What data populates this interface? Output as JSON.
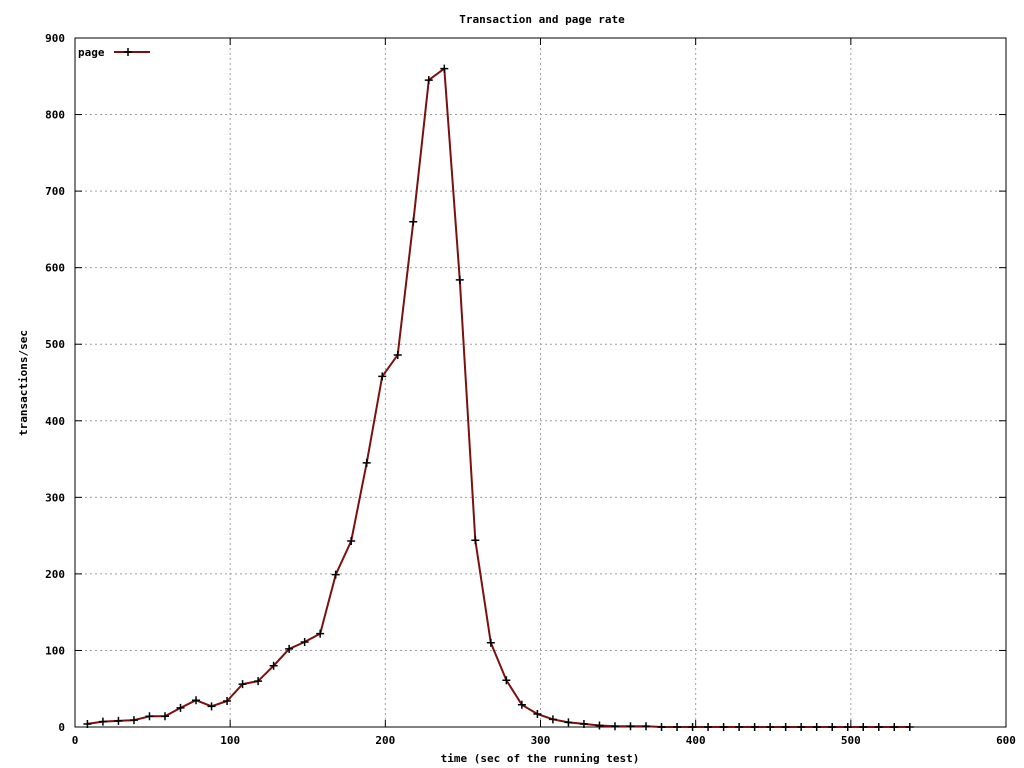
{
  "chart_data": {
    "type": "line",
    "title": "Transaction and page rate",
    "xlabel": "time (sec of the running test)",
    "ylabel": "transactions/sec",
    "xlim": [
      0,
      600
    ],
    "ylim": [
      0,
      900
    ],
    "x_ticks": [
      0,
      100,
      200,
      300,
      400,
      500,
      600
    ],
    "y_ticks": [
      0,
      100,
      200,
      300,
      400,
      500,
      600,
      700,
      800,
      900
    ],
    "grid": true,
    "legend_position": "top-left",
    "series": [
      {
        "name": "page",
        "color": "#7a1010",
        "marker": "plus",
        "x": [
          8,
          18,
          28,
          38,
          48,
          58,
          68,
          78,
          88,
          98,
          108,
          118,
          128,
          138,
          148,
          158,
          168,
          178,
          188,
          198,
          208,
          218,
          228,
          238,
          248,
          258,
          268,
          278,
          288,
          298,
          308,
          318,
          328,
          338,
          348,
          358,
          368,
          378,
          388,
          398,
          408,
          418,
          428,
          438,
          448,
          458,
          468,
          478,
          488,
          498,
          508,
          518,
          528,
          538
        ],
        "y": [
          4,
          7,
          8,
          9,
          14,
          14,
          25,
          35,
          27,
          34,
          56,
          60,
          80,
          102,
          111,
          122,
          199,
          243,
          345,
          458,
          486,
          660,
          845,
          860,
          584,
          244,
          110,
          61,
          29,
          17,
          10,
          6,
          4,
          2,
          1,
          1,
          1,
          0,
          0,
          0,
          0,
          0,
          0,
          0,
          0,
          0,
          0,
          0,
          0,
          0,
          0,
          0,
          0,
          0
        ]
      }
    ]
  }
}
